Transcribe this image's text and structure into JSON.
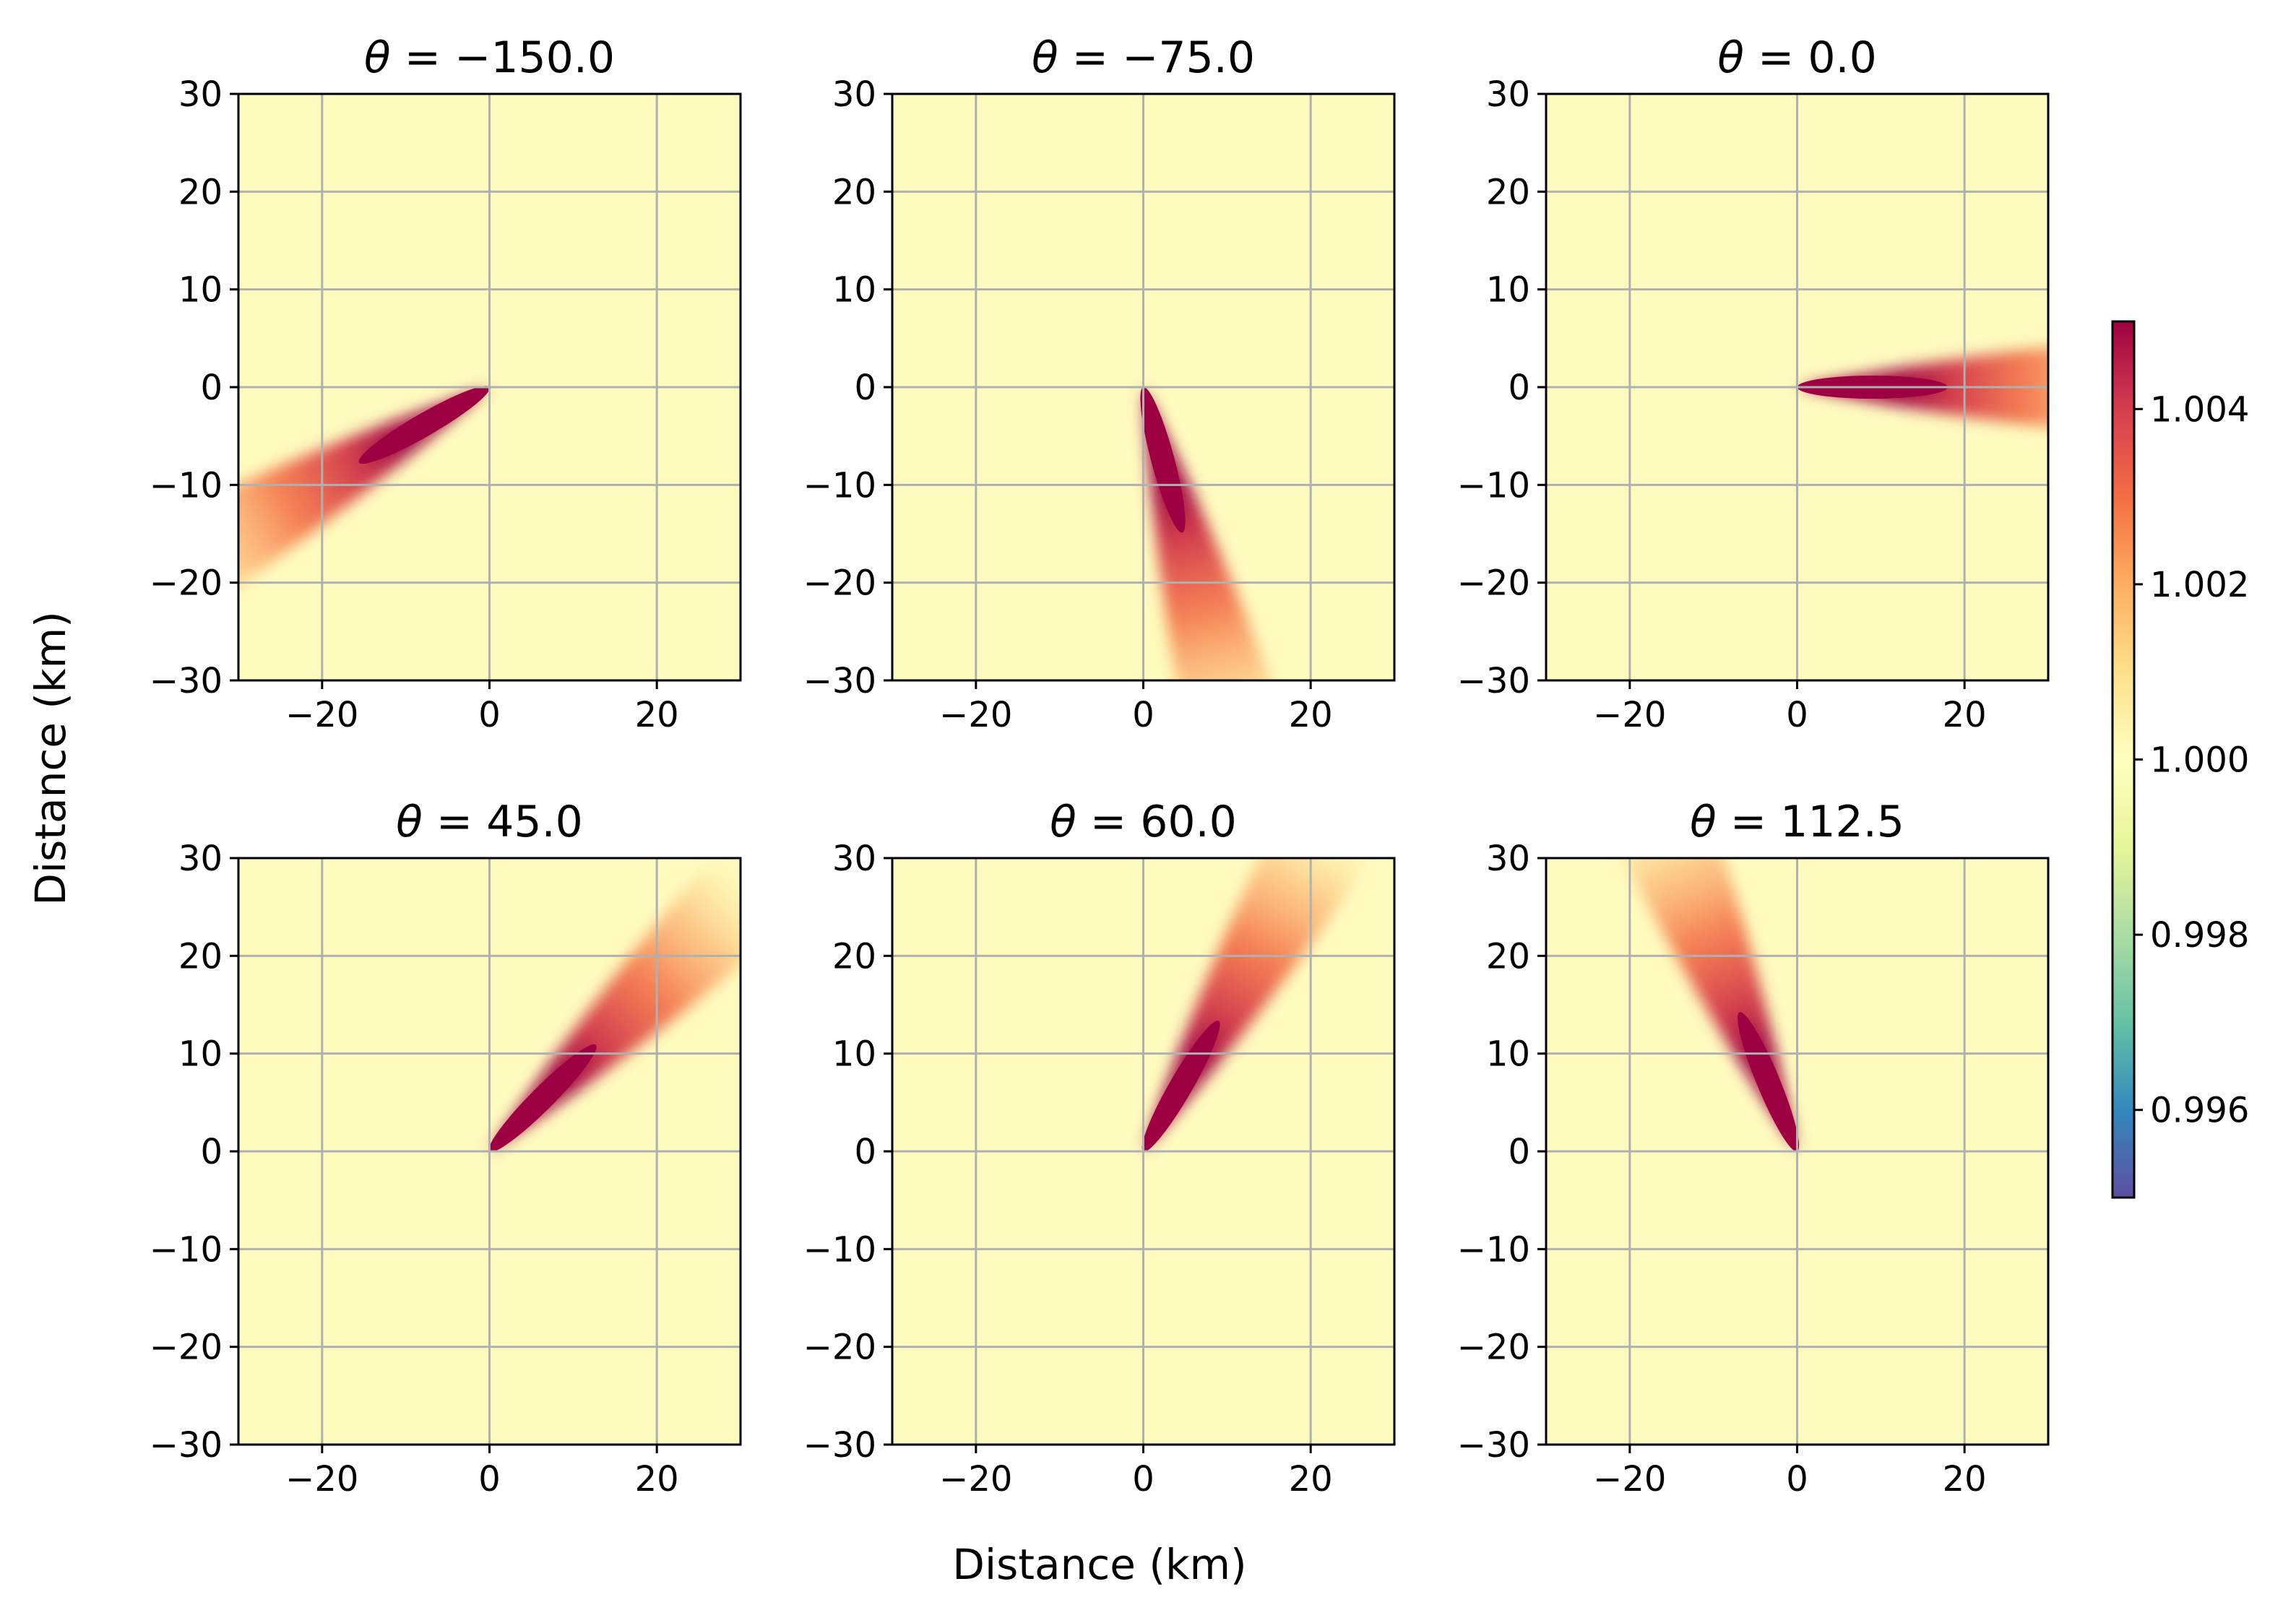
{
  "chart_data": {
    "type": "heatmap",
    "xlabel": "Distance (km)",
    "ylabel": "Distance (km)",
    "xlim": [
      -30,
      30
    ],
    "ylim": [
      -30,
      30
    ],
    "xticks": [
      -20,
      0,
      20
    ],
    "yticks": [
      -30,
      -20,
      -10,
      0,
      10,
      20,
      30
    ],
    "xtick_labels": [
      "−20",
      "0",
      "20"
    ],
    "ytick_labels": [
      "−30",
      "−20",
      "−10",
      "0",
      "10",
      "20",
      "30"
    ],
    "grid": true,
    "panels": [
      {
        "theta": -150.0,
        "title_value": "−150.0"
      },
      {
        "theta": -75.0,
        "title_value": "−75.0"
      },
      {
        "theta": 0.0,
        "title_value": "0.0"
      },
      {
        "theta": 45.0,
        "title_value": "45.0"
      },
      {
        "theta": 60.0,
        "title_value": "60.0"
      },
      {
        "theta": 112.5,
        "title_value": "112.5"
      }
    ],
    "plume": {
      "origin": [
        0,
        0
      ],
      "peak_value": 1.005,
      "background_value": 1.0,
      "extent_km": 45
    },
    "colorbar": {
      "colormap": "Spectral_r",
      "vmin": 0.995,
      "vmax": 1.005,
      "ticks": [
        0.996,
        0.998,
        1.0,
        1.002,
        1.004
      ],
      "tick_labels": [
        "0.996",
        "0.998",
        "1.000",
        "1.002",
        "1.004"
      ]
    },
    "colors": {
      "background": "#fefbbf",
      "grid": "#b0b0b0",
      "low": "#5e4fa2",
      "high": "#9e0142"
    }
  }
}
